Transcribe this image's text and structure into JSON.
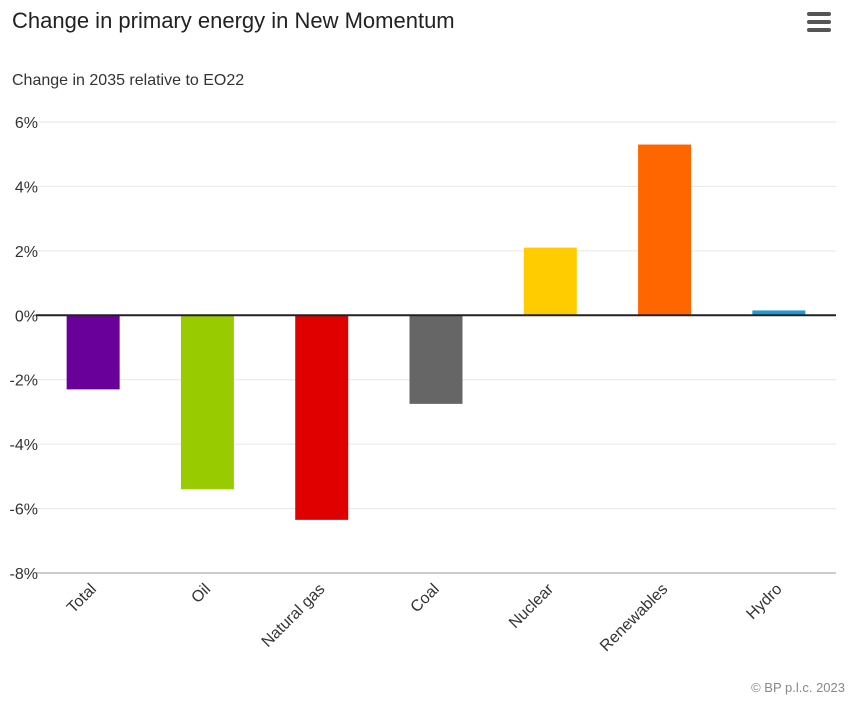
{
  "header": {
    "title": "Change in primary energy in New Momentum",
    "menu_icon": "hamburger-menu-icon"
  },
  "footer": {
    "credit": "© BP p.l.c. 2023"
  },
  "chart_data": {
    "type": "bar",
    "title": "Change in primary energy in New Momentum",
    "subtitle": "Change in 2035 relative to EO22",
    "categories": [
      "Total",
      "Oil",
      "Natural gas",
      "Coal",
      "Nuclear",
      "Renewables",
      "Hydro"
    ],
    "values": [
      -2.3,
      -5.4,
      -6.35,
      -2.75,
      2.1,
      5.3,
      0.15
    ],
    "colors": [
      "#6a0099",
      "#99cc00",
      "#e10000",
      "#666666",
      "#ffcc00",
      "#ff6600",
      "#1e9bd7"
    ],
    "ylim": [
      -8,
      6
    ],
    "yticks": [
      6,
      4,
      2,
      0,
      -2,
      -4,
      -6,
      -8
    ],
    "ytick_labels": [
      "6%",
      "4%",
      "2%",
      "0%",
      "-2%",
      "-4%",
      "-6%",
      "-8%"
    ],
    "xlabel": "",
    "ylabel": "",
    "grid": true,
    "legend": false
  }
}
